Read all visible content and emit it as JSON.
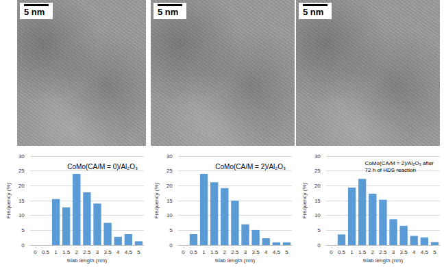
{
  "images": [
    {
      "scale_bar": "5 nm"
    },
    {
      "scale_bar": "5 nm"
    },
    {
      "scale_bar": "5 nm"
    }
  ],
  "chart_data": [
    {
      "type": "bar",
      "title": "CoMo(CA/M = 0)/Al₂O₃",
      "categories": [
        "0",
        "0.5",
        "1",
        "1.5",
        "2",
        "2.5",
        "3",
        "3.5",
        "4",
        "4.5",
        "5"
      ],
      "values": [
        0,
        0,
        15.5,
        12.7,
        24,
        17.8,
        14,
        7.5,
        2.8,
        3.7,
        1.3
      ],
      "color": "#5b9bd5",
      "xlabel": "Slab length (nm)",
      "ylabel": "Frequency (%)",
      "ylim": [
        0,
        30
      ],
      "yticks": [
        0,
        5,
        10,
        15,
        20,
        25,
        30
      ],
      "grid": true
    },
    {
      "type": "bar",
      "title": "CoMo(CA/M = 2)/Al₂O₃",
      "categories": [
        "0",
        "0.5",
        "1",
        "1.5",
        "2",
        "2.5",
        "3",
        "3.5",
        "4",
        "4.5",
        "5"
      ],
      "values": [
        0,
        3.7,
        24,
        21.2,
        19.2,
        15,
        7,
        5.1,
        2.3,
        0.9,
        0.9
      ],
      "color": "#5b9bd5",
      "xlabel": "Slab length (nm)",
      "ylabel": "Frequency (%)",
      "ylim": [
        0,
        30
      ],
      "yticks": [
        0,
        5,
        10,
        15,
        20,
        25,
        30
      ],
      "grid": true
    },
    {
      "type": "bar",
      "title": "CoMo(CA/M = 2)/Al₂O₃ after\n72 h of HDS reaction",
      "categories": [
        "0",
        "0.5",
        "1",
        "1.5",
        "2",
        "2.5",
        "3",
        "3.5",
        "4",
        "4.5",
        "5"
      ],
      "values": [
        0,
        3.6,
        19.4,
        22.3,
        17.3,
        15.3,
        8.7,
        6.5,
        3.1,
        2.6,
        1
      ],
      "color": "#5b9bd5",
      "xlabel": "Slab length (nm)",
      "ylabel": "Frequency (%)",
      "ylim": [
        0,
        30
      ],
      "yticks": [
        0,
        5,
        10,
        15,
        20,
        25,
        30
      ],
      "grid": true
    }
  ]
}
